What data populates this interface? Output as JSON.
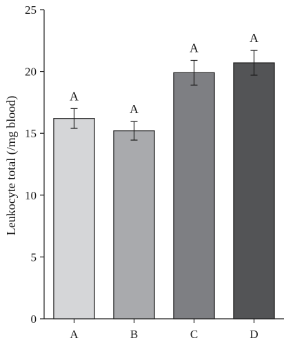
{
  "chart_data": {
    "type": "bar",
    "categories": [
      "A",
      "B",
      "C",
      "D"
    ],
    "values": [
      16.2,
      15.2,
      19.9,
      20.7
    ],
    "error": [
      0.8,
      0.75,
      1.0,
      1.0
    ],
    "significance_labels": [
      "A",
      "A",
      "A",
      "A"
    ],
    "ylabel": "Leukocyte total (/mg blood)",
    "xlabel": "",
    "ylim": [
      0,
      25
    ],
    "yticks": [
      0,
      5,
      10,
      15,
      20,
      25
    ],
    "grid": false,
    "colors": [
      "#d5d6d8",
      "#a9aaad",
      "#7e7f83",
      "#535456"
    ]
  }
}
